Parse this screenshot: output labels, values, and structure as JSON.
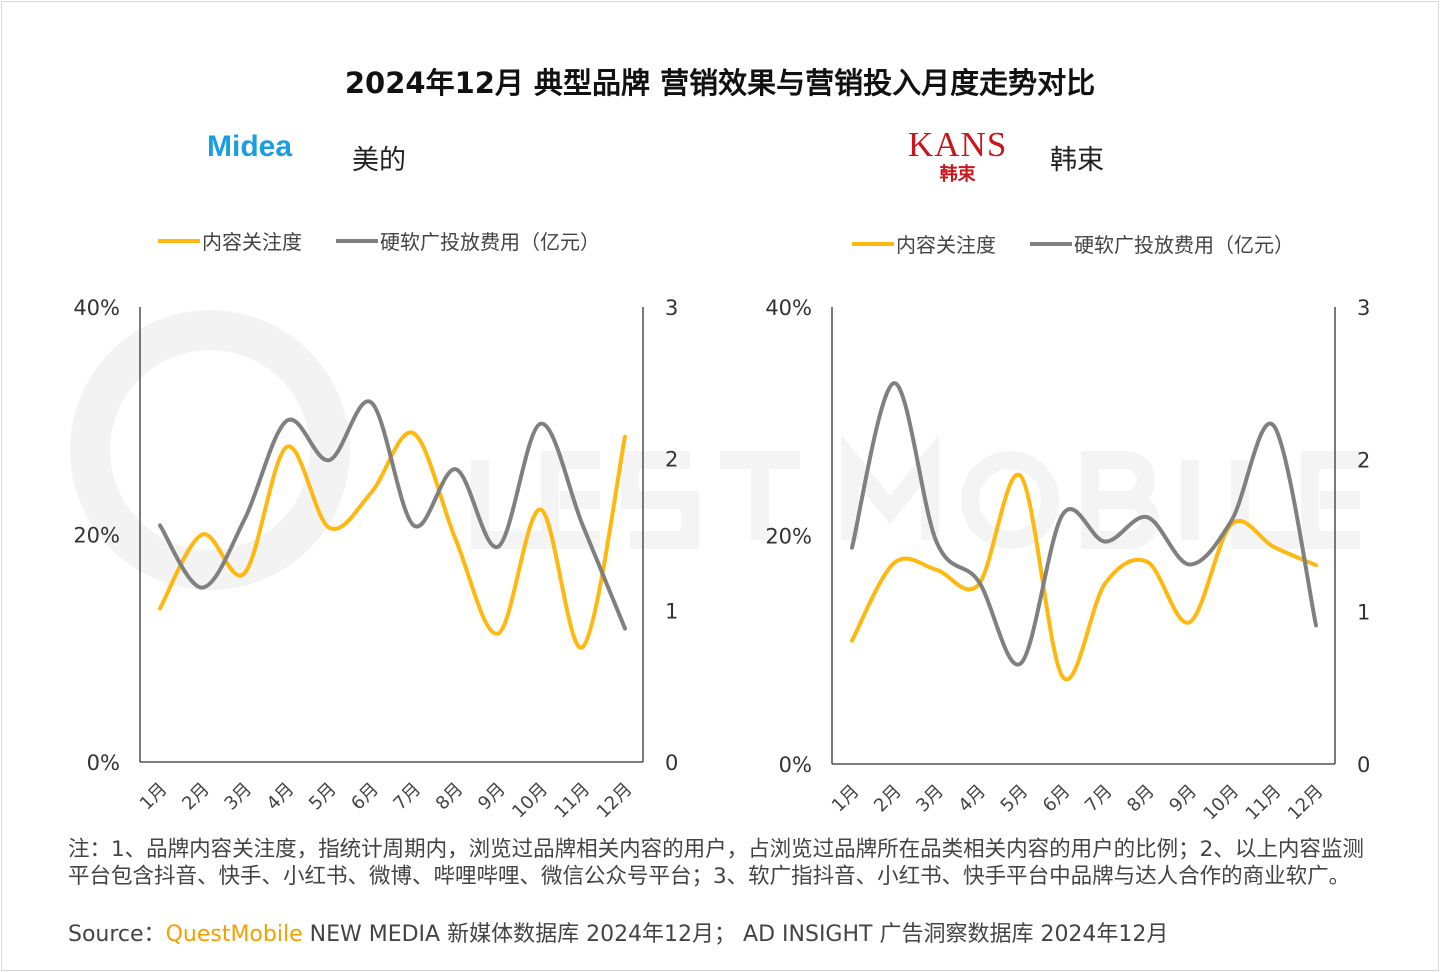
{
  "title": "2024年12月 典型品牌 营销效果与营销投入月度走势对比",
  "watermark": "QUESTMOBILE",
  "brands": [
    {
      "logo_text": "Midea",
      "name": "美的"
    },
    {
      "logo_text": "KANS",
      "logo_sub": "韩束",
      "name": "韩束"
    }
  ],
  "legend": {
    "attention": "内容关注度",
    "spend": "硬软广投放费用（亿元）"
  },
  "colors": {
    "attention": "#FFB80F",
    "spend": "#808080"
  },
  "chart_data": [
    {
      "type": "line",
      "title": "美的",
      "categories": [
        "1月",
        "2月",
        "3月",
        "4月",
        "5月",
        "6月",
        "7月",
        "8月",
        "9月",
        "10月",
        "11月",
        "12月"
      ],
      "left_axis": {
        "ticks": [
          "0%",
          "20%",
          "40%"
        ],
        "range": [
          0,
          40
        ]
      },
      "right_axis": {
        "ticks": [
          "0",
          "1",
          "2",
          "3"
        ],
        "range": [
          0,
          3
        ]
      },
      "series": [
        {
          "name": "内容关注度",
          "axis": "left",
          "values": [
            13.5,
            20.0,
            16.6,
            27.7,
            20.6,
            23.7,
            28.9,
            19.5,
            11.3,
            22.2,
            10.1,
            28.6
          ]
        },
        {
          "name": "硬软广投放费用（亿元）",
          "axis": "right",
          "values": [
            1.56,
            1.15,
            1.6,
            2.25,
            1.99,
            2.37,
            1.56,
            1.93,
            1.42,
            2.23,
            1.56,
            0.88
          ]
        }
      ]
    },
    {
      "type": "line",
      "title": "韩束",
      "categories": [
        "1月",
        "2月",
        "3月",
        "4月",
        "5月",
        "6月",
        "7月",
        "8月",
        "9月",
        "10月",
        "11月",
        "12月"
      ],
      "left_axis": {
        "ticks": [
          "0%",
          "20%",
          "40%"
        ],
        "range": [
          0,
          40
        ]
      },
      "right_axis": {
        "ticks": [
          "0",
          "1",
          "2",
          "3"
        ],
        "range": [
          0,
          3
        ]
      },
      "series": [
        {
          "name": "内容关注度",
          "axis": "left",
          "values": [
            10.8,
            17.6,
            17.0,
            15.7,
            25.2,
            7.6,
            15.8,
            17.7,
            12.4,
            21.0,
            19.0,
            17.4
          ]
        },
        {
          "name": "硬软广投放费用（亿元）",
          "axis": "right",
          "values": [
            1.42,
            2.5,
            1.46,
            1.2,
            0.66,
            1.64,
            1.46,
            1.62,
            1.31,
            1.6,
            2.22,
            0.91
          ]
        }
      ]
    }
  ],
  "note": "注：1、品牌内容关注度，指统计周期内，浏览过品牌相关内容的用户，占浏览过品牌所在品类相关内容的用户的比例；2、以上内容监测平台包含抖音、快手、小红书、微博、哔哩哔哩、微信公众号平台；3、软广指抖音、小红书、快手平台中品牌与达人合作的商业软广。",
  "source": {
    "label": "Source：",
    "brand": "QuestMobile",
    "text": " NEW MEDIA 新媒体数据库 2024年12月； AD INSIGHT 广告洞察数据库 2024年12月"
  }
}
